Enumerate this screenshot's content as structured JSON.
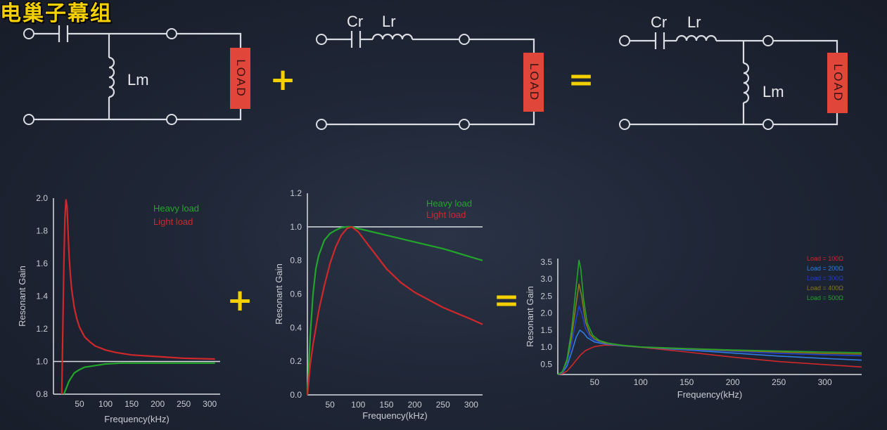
{
  "watermark": "电巢子幕组",
  "circuits": {
    "left": {
      "lm_label": "Lm",
      "load_label": "LOAD"
    },
    "middle": {
      "cr_label": "Cr",
      "lr_label": "Lr",
      "load_label": "LOAD"
    },
    "right": {
      "cr_label": "Cr",
      "lr_label": "Lr",
      "lm_label": "Lm",
      "load_label": "LOAD"
    }
  },
  "operators": {
    "plus": "+",
    "equals": "="
  },
  "colors": {
    "heavy": "#22a52a",
    "light": "#d0282a",
    "axis": "#d9dde3",
    "load_fill": "#e0473a",
    "operator": "#f5d000"
  },
  "chart_data": [
    {
      "type": "line",
      "xlabel": "Frequency(kHz)",
      "ylabel": "Resonant Gain",
      "xlim": [
        0,
        320
      ],
      "ylim": [
        0.8,
        2.0
      ],
      "xticks": [
        50,
        100,
        150,
        200,
        250,
        300
      ],
      "yticks": [
        0.8,
        1.0,
        1.2,
        1.4,
        1.6,
        1.8,
        2.0
      ],
      "reference_line": 1.0,
      "legend_position": "top-right",
      "series": [
        {
          "name": "Heavy load",
          "color": "#22a52a",
          "x": [
            20,
            25,
            30,
            40,
            50,
            60,
            80,
            100,
            130,
            160,
            200,
            250,
            310
          ],
          "y": [
            0.8,
            0.84,
            0.88,
            0.93,
            0.95,
            0.965,
            0.975,
            0.985,
            0.99,
            0.99,
            0.99,
            0.99,
            0.99
          ]
        },
        {
          "name": "Light load",
          "color": "#d0282a",
          "x": [
            16,
            18,
            20,
            22,
            24,
            26,
            28,
            30,
            32,
            35,
            40,
            45,
            50,
            60,
            70,
            80,
            100,
            120,
            150,
            200,
            250,
            310
          ],
          "y": [
            0.8,
            1.2,
            1.6,
            1.88,
            1.99,
            1.95,
            1.8,
            1.65,
            1.55,
            1.44,
            1.33,
            1.26,
            1.21,
            1.15,
            1.12,
            1.095,
            1.07,
            1.055,
            1.04,
            1.03,
            1.02,
            1.015
          ]
        }
      ]
    },
    {
      "type": "line",
      "xlabel": "Frequency(kHz)",
      "ylabel": "Resonant Gain",
      "xlim": [
        10,
        320
      ],
      "ylim": [
        0.0,
        1.2
      ],
      "xticks": [
        50,
        100,
        150,
        200,
        250,
        300
      ],
      "yticks": [
        0.0,
        0.2,
        0.4,
        0.6,
        0.8,
        1.0,
        1.2
      ],
      "reference_line": 1.0,
      "legend_position": "top-right",
      "series": [
        {
          "name": "Heavy load",
          "color": "#22a52a",
          "x": [
            10,
            15,
            20,
            25,
            30,
            40,
            50,
            60,
            70,
            80,
            88,
            100,
            125,
            150,
            200,
            250,
            300,
            320
          ],
          "y": [
            0.0,
            0.35,
            0.6,
            0.75,
            0.83,
            0.92,
            0.96,
            0.98,
            0.995,
            1.0,
            1.0,
            0.99,
            0.97,
            0.95,
            0.91,
            0.87,
            0.82,
            0.8
          ]
        },
        {
          "name": "Light load",
          "color": "#d0282a",
          "x": [
            10,
            15,
            20,
            30,
            40,
            50,
            60,
            70,
            80,
            88,
            100,
            125,
            150,
            175,
            200,
            250,
            300,
            320
          ],
          "y": [
            0.0,
            0.18,
            0.3,
            0.5,
            0.65,
            0.78,
            0.88,
            0.95,
            0.99,
            1.0,
            0.97,
            0.86,
            0.75,
            0.67,
            0.61,
            0.52,
            0.45,
            0.42
          ]
        }
      ]
    },
    {
      "type": "line",
      "xlabel": "Frequency(kHz)",
      "ylabel": "Resonant Gain",
      "xlim": [
        10,
        340
      ],
      "ylim": [
        0.2,
        3.6
      ],
      "xticks": [
        50,
        100,
        150,
        200,
        250,
        300
      ],
      "yticks": [
        0.5,
        1.0,
        1.5,
        2.0,
        2.5,
        3.0,
        3.5
      ],
      "legend_position": "top-right",
      "series": [
        {
          "name": "Load = 100Ω",
          "color": "#d0282a",
          "x": [
            10,
            15,
            20,
            25,
            30,
            35,
            40,
            50,
            60,
            70,
            80,
            100,
            150,
            200,
            250,
            300,
            340
          ],
          "y": [
            0.2,
            0.22,
            0.3,
            0.45,
            0.62,
            0.78,
            0.9,
            1.02,
            1.06,
            1.06,
            1.05,
            1.0,
            0.86,
            0.71,
            0.58,
            0.49,
            0.42
          ]
        },
        {
          "name": "Load = 200Ω",
          "color": "#2f7de0",
          "x": [
            10,
            15,
            20,
            25,
            30,
            34,
            38,
            42,
            50,
            60,
            80,
            100,
            150,
            200,
            250,
            300,
            340
          ],
          "y": [
            0.2,
            0.25,
            0.45,
            0.85,
            1.3,
            1.5,
            1.42,
            1.28,
            1.15,
            1.1,
            1.04,
            1.0,
            0.92,
            0.83,
            0.74,
            0.67,
            0.62
          ]
        },
        {
          "name": "Load = 300Ω",
          "color": "#1f3fd0",
          "x": [
            10,
            15,
            20,
            25,
            30,
            33,
            36,
            40,
            45,
            50,
            60,
            80,
            100,
            150,
            200,
            250,
            300,
            340
          ],
          "y": [
            0.2,
            0.26,
            0.55,
            1.1,
            1.85,
            2.2,
            2.0,
            1.55,
            1.3,
            1.2,
            1.12,
            1.05,
            1.0,
            0.94,
            0.88,
            0.82,
            0.78,
            0.75
          ]
        },
        {
          "name": "Load = 400Ω",
          "color": "#8a7a1a",
          "x": [
            10,
            15,
            20,
            25,
            30,
            33,
            36,
            40,
            45,
            50,
            60,
            80,
            100,
            150,
            200,
            250,
            300,
            340
          ],
          "y": [
            0.2,
            0.27,
            0.6,
            1.3,
            2.3,
            2.85,
            2.5,
            1.75,
            1.38,
            1.24,
            1.13,
            1.05,
            1.0,
            0.95,
            0.9,
            0.86,
            0.82,
            0.8
          ]
        },
        {
          "name": "Load = 500Ω",
          "color": "#22a52a",
          "x": [
            10,
            15,
            20,
            25,
            30,
            33,
            35,
            38,
            42,
            48,
            55,
            65,
            80,
            100,
            150,
            200,
            250,
            300,
            340
          ],
          "y": [
            0.2,
            0.28,
            0.65,
            1.5,
            2.8,
            3.55,
            3.3,
            2.4,
            1.7,
            1.35,
            1.2,
            1.12,
            1.06,
            1.01,
            0.96,
            0.92,
            0.89,
            0.86,
            0.84
          ]
        }
      ]
    }
  ]
}
